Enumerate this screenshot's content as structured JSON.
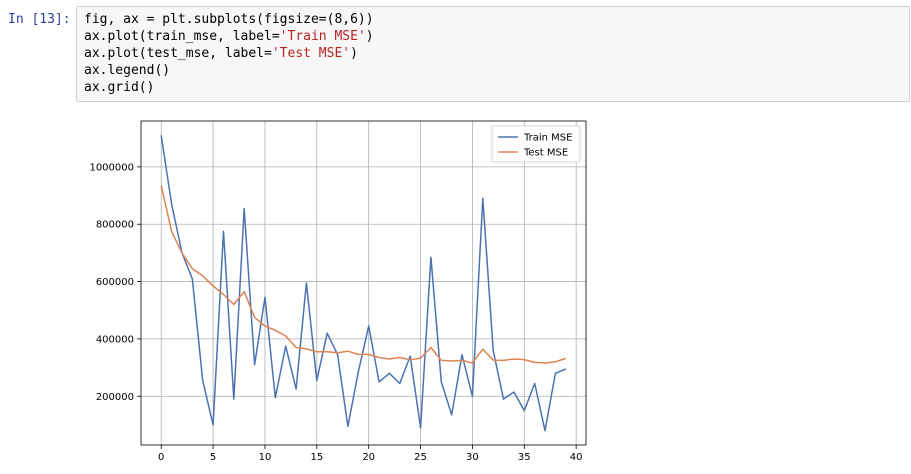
{
  "cell": {
    "prompt": "In [13]:",
    "code_lines": [
      [
        {
          "t": "fig, ax = plt.subplots(figsize=(8,6))",
          "s": ""
        }
      ],
      [
        {
          "t": "ax.plot(train_mse, label=",
          "s": ""
        },
        {
          "t": "'Train MSE'",
          "s": "str"
        },
        {
          "t": ")",
          "s": ""
        }
      ],
      [
        {
          "t": "ax.plot(test_mse, label=",
          "s": ""
        },
        {
          "t": "'Test MSE'",
          "s": "str"
        },
        {
          "t": ")",
          "s": ""
        }
      ],
      [
        {
          "t": "ax.legend()",
          "s": ""
        }
      ],
      [
        {
          "t": "ax.grid()",
          "s": ""
        }
      ]
    ]
  },
  "chart_data": {
    "type": "line",
    "title": "",
    "xlabel": "",
    "ylabel": "",
    "xlim": [
      -1.95,
      40.95
    ],
    "ylim": [
      30000,
      1160000
    ],
    "xticks": [
      0,
      5,
      10,
      15,
      20,
      25,
      30,
      35,
      40
    ],
    "xtick_labels": [
      "0",
      "5",
      "10",
      "15",
      "20",
      "25",
      "30",
      "35",
      "40"
    ],
    "yticks": [
      200000,
      400000,
      600000,
      800000,
      1000000
    ],
    "ytick_labels": [
      "200000",
      "400000",
      "600000",
      "800000",
      "1000000"
    ],
    "grid": true,
    "legend_position": "upper right",
    "series": [
      {
        "name": "Train MSE",
        "color": "#4c72b0",
        "x": [
          0,
          1,
          2,
          3,
          4,
          5,
          6,
          7,
          8,
          9,
          10,
          11,
          12,
          13,
          14,
          15,
          16,
          17,
          18,
          19,
          20,
          21,
          22,
          23,
          24,
          25,
          26,
          27,
          28,
          29,
          30,
          31,
          32,
          33,
          34,
          35,
          36,
          37,
          38,
          39
        ],
        "values": [
          1110000,
          870000,
          700000,
          610000,
          255000,
          100000,
          775000,
          190000,
          855000,
          310000,
          545000,
          195000,
          375000,
          225000,
          595000,
          255000,
          420000,
          345000,
          95000,
          285000,
          445000,
          250000,
          280000,
          245000,
          340000,
          90000,
          685000,
          250000,
          135000,
          345000,
          200000,
          890000,
          360000,
          190000,
          215000,
          150000,
          245000,
          80000,
          280000,
          295000
        ]
      },
      {
        "name": "Test MSE",
        "color": "#dd8452",
        "x": [
          0,
          1,
          2,
          3,
          4,
          5,
          6,
          7,
          8,
          9,
          10,
          11,
          12,
          13,
          14,
          15,
          16,
          17,
          18,
          19,
          20,
          21,
          22,
          23,
          24,
          25,
          26,
          27,
          28,
          29,
          30,
          31,
          32,
          33,
          34,
          35,
          36,
          37,
          38,
          39
        ],
        "values": [
          935000,
          775000,
          700000,
          645000,
          620000,
          585000,
          555000,
          520000,
          565000,
          475000,
          445000,
          430000,
          410000,
          370000,
          365000,
          355000,
          355000,
          352000,
          357000,
          346000,
          346000,
          335000,
          330000,
          335000,
          327000,
          333000,
          370000,
          325000,
          323000,
          325000,
          316000,
          364000,
          326000,
          325000,
          330000,
          328000,
          318000,
          316000,
          320000,
          332000
        ]
      }
    ]
  }
}
